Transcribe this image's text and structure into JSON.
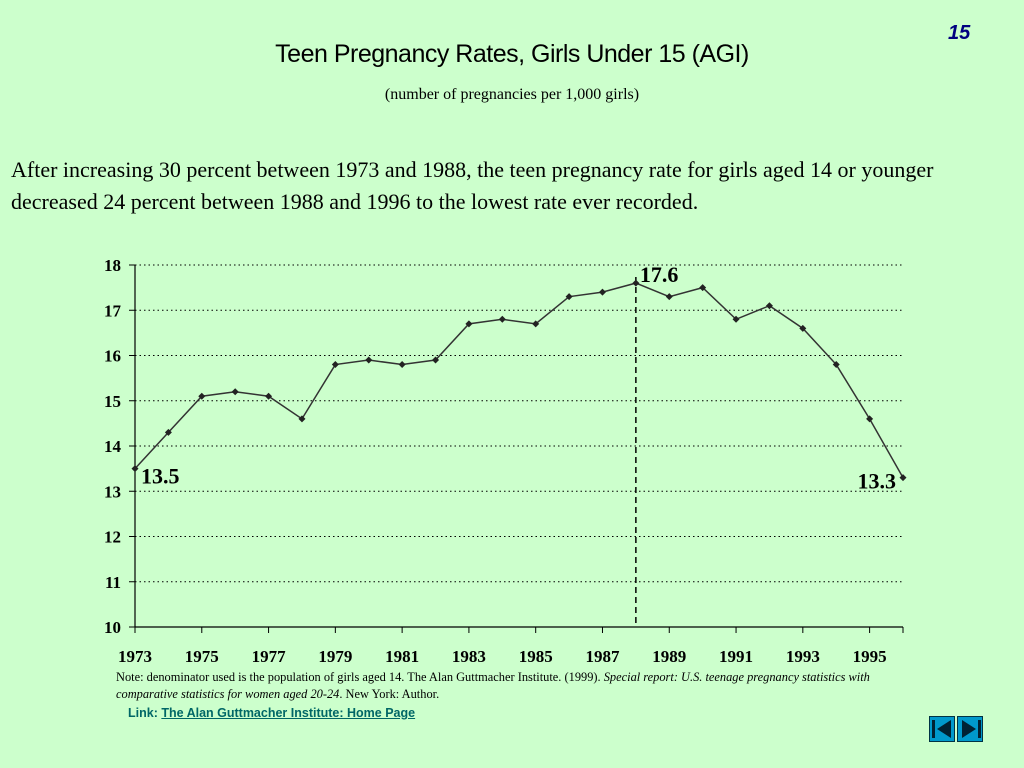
{
  "slide_number": "15",
  "title": "Teen Pregnancy Rates, Girls Under 15 (AGI)",
  "subtitle": "(number of pregnancies per 1,000 girls)",
  "intro": "After increasing 30 percent between 1973 and 1988, the teen pregnancy rate for girls aged 14 or younger decreased 24 percent between 1988 and 1996 to the lowest rate ever recorded.",
  "note": {
    "prefix": "Note: denominator used is the population of girls aged 14. The Alan Guttmacher Institute. (1999). ",
    "italic": "Special report: U.S. teenage pregnancy statistics with comparative statistics for women aged 20-24",
    "suffix": ". New York: Author."
  },
  "link": {
    "label": "Link:",
    "text": "The Alan Guttmacher Institute: Home Page"
  },
  "nav": {
    "prev": "previous-slide",
    "next": "next-slide"
  },
  "chart_data": {
    "type": "line",
    "title": "",
    "xlabel": "",
    "ylabel": "",
    "x": [
      1973,
      1974,
      1975,
      1976,
      1977,
      1978,
      1979,
      1980,
      1981,
      1982,
      1983,
      1984,
      1985,
      1986,
      1987,
      1988,
      1989,
      1990,
      1991,
      1992,
      1993,
      1994,
      1995,
      1996
    ],
    "x_tick_labels": [
      "1973",
      "1975",
      "1977",
      "1979",
      "1981",
      "1983",
      "1985",
      "1987",
      "1989",
      "1991",
      "1993",
      "1995"
    ],
    "y_ticks": [
      10,
      11,
      12,
      13,
      14,
      15,
      16,
      17,
      18
    ],
    "ylim": [
      10,
      18
    ],
    "series": [
      {
        "values": [
          13.5,
          14.3,
          15.1,
          15.2,
          15.1,
          14.6,
          15.8,
          15.9,
          15.8,
          15.9,
          16.7,
          16.8,
          16.7,
          17.3,
          17.4,
          17.6,
          17.3,
          17.5,
          16.8,
          17.1,
          16.6,
          15.8,
          14.6,
          13.3
        ],
        "color": "#333333"
      }
    ],
    "grid": "horizontal dotted",
    "reference_line": {
      "x": 1988,
      "style": "dashed"
    },
    "annotations": [
      {
        "x": 1973,
        "y": 13.5,
        "text": "13.5"
      },
      {
        "x": 1988,
        "y": 17.6,
        "text": "17.6"
      },
      {
        "x": 1996,
        "y": 13.3,
        "text": "13.3"
      }
    ]
  }
}
